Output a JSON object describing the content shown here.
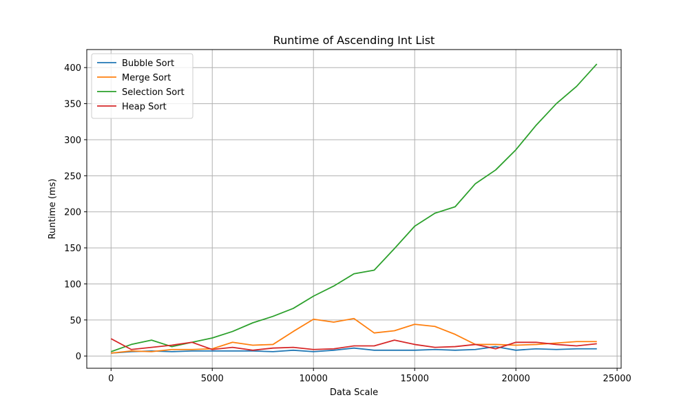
{
  "chart_data": {
    "type": "line",
    "title": "Runtime of Ascending Int List",
    "xlabel": "Data Scale",
    "ylabel": "Runtime (ms)",
    "xlim": [
      -1200,
      25200
    ],
    "ylim": [
      -17,
      425
    ],
    "xticks": [
      0,
      5000,
      10000,
      15000,
      20000,
      25000
    ],
    "yticks": [
      0,
      50,
      100,
      150,
      200,
      250,
      300,
      350,
      400
    ],
    "grid": true,
    "legend_position": "top-left",
    "x": [
      0,
      1000,
      2000,
      3000,
      4000,
      5000,
      6000,
      7000,
      8000,
      9000,
      10000,
      11000,
      12000,
      13000,
      14000,
      15000,
      16000,
      17000,
      18000,
      19000,
      20000,
      21000,
      22000,
      23000,
      24000
    ],
    "series": [
      {
        "name": "Bubble Sort",
        "color": "#1f77b4",
        "values": [
          4,
          6,
          7,
          6,
          7,
          7,
          7,
          7,
          6,
          8,
          6,
          8,
          11,
          8,
          8,
          8,
          9,
          8,
          9,
          13,
          8,
          10,
          9,
          10,
          10
        ]
      },
      {
        "name": "Merge Sort",
        "color": "#ff7f0e",
        "values": [
          4,
          7,
          6,
          9,
          9,
          10,
          19,
          15,
          16,
          34,
          51,
          47,
          52,
          32,
          35,
          44,
          41,
          30,
          16,
          16,
          15,
          16,
          18,
          20,
          20
        ]
      },
      {
        "name": "Selection Sort",
        "color": "#2ca02c",
        "values": [
          6,
          16,
          22,
          13,
          19,
          25,
          34,
          46,
          55,
          66,
          83,
          97,
          114,
          119,
          149,
          180,
          198,
          207,
          239,
          258,
          286,
          320,
          350,
          374,
          405
        ]
      },
      {
        "name": "Heap Sort",
        "color": "#d62728",
        "values": [
          24,
          9,
          12,
          15,
          19,
          9,
          12,
          8,
          11,
          12,
          9,
          10,
          14,
          14,
          22,
          16,
          12,
          13,
          16,
          10,
          19,
          19,
          16,
          14,
          17
        ]
      }
    ]
  }
}
